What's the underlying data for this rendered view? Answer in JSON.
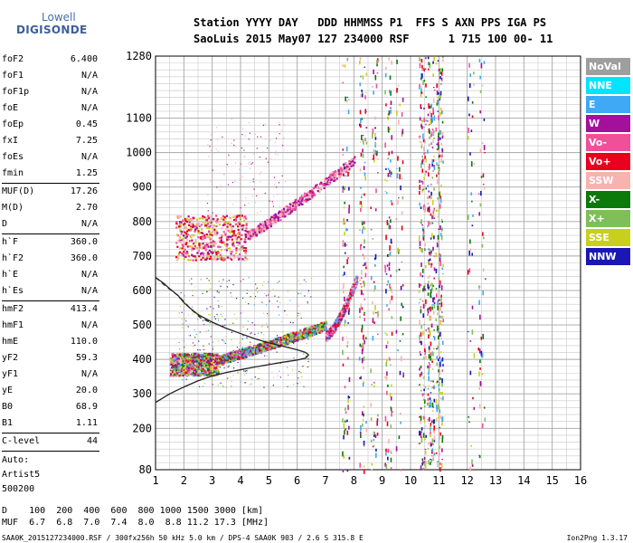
{
  "logo": {
    "line1": "Lowell",
    "line2": "DIGISONDE"
  },
  "header": {
    "row1": "Station YYYY DAY   DDD HHMMSS P1  FFS S AXN PPS IGA PS",
    "row2": "SaoLuis 2015 May07 127 234000 RSF      1 715 100 00- 11"
  },
  "params_group1": [
    {
      "k": "foF2",
      "v": "6.400"
    },
    {
      "k": "foF1",
      "v": "N/A"
    },
    {
      "k": "foF1p",
      "v": "N/A"
    },
    {
      "k": "foE",
      "v": "N/A"
    },
    {
      "k": "foEp",
      "v": "0.45"
    },
    {
      "k": "fxI",
      "v": "7.25"
    },
    {
      "k": "foEs",
      "v": "N/A"
    },
    {
      "k": "fmin",
      "v": "1.25"
    }
  ],
  "params_group2": [
    {
      "k": "MUF(D)",
      "v": "17.26"
    },
    {
      "k": "M(D)",
      "v": "2.70"
    },
    {
      "k": "D",
      "v": "N/A"
    }
  ],
  "params_group3": [
    {
      "k": "h`F",
      "v": "360.0"
    },
    {
      "k": "h`F2",
      "v": "360.0"
    },
    {
      "k": "h`E",
      "v": "N/A"
    },
    {
      "k": "h`Es",
      "v": "N/A"
    }
  ],
  "params_group4": [
    {
      "k": "hmF2",
      "v": "413.4"
    },
    {
      "k": "hmF1",
      "v": "N/A"
    },
    {
      "k": "hmE",
      "v": "110.0"
    },
    {
      "k": "yF2",
      "v": "59.3"
    },
    {
      "k": "yF1",
      "v": "N/A"
    },
    {
      "k": "yE",
      "v": "20.0"
    },
    {
      "k": "B0",
      "v": "68.9"
    },
    {
      "k": "B1",
      "v": "1.11"
    }
  ],
  "params_group5": [
    {
      "k": "C-level",
      "v": "44"
    }
  ],
  "auto": {
    "line1": "Auto:",
    "line2": "Artist5",
    "line3": "500200"
  },
  "legend": [
    {
      "label": "NoVal",
      "color": "#9e9e9e"
    },
    {
      "label": "NNE",
      "color": "#00e5ff"
    },
    {
      "label": "E",
      "color": "#3fa9f5"
    },
    {
      "label": "W",
      "color": "#a3109b"
    },
    {
      "label": "Vo-",
      "color": "#f0509a"
    },
    {
      "label": "Vo+",
      "color": "#e8001c"
    },
    {
      "label": "SSW",
      "color": "#f7b3ae"
    },
    {
      "label": "X-",
      "color": "#0b7a0b"
    },
    {
      "label": "X+",
      "color": "#7ebf5a"
    },
    {
      "label": "SSE",
      "color": "#c9cf1d"
    },
    {
      "label": "NNW",
      "color": "#1a17b4"
    }
  ],
  "footer": {
    "d_row": "D    100  200  400  600  800 1000 1500 3000 [km]",
    "muf_row": "MUF  6.7  6.8  7.0  7.4  8.0  8.8 11.2 17.3 [MHz]",
    "bottom": "SAA0K_2015127234000.RSF / 300fx256h 50 kHz 5.0 km / DPS-4 SAA0K 903 / 2.6 S 315.8 E",
    "version": "Ion2Png 1.3.17"
  },
  "chart_data": {
    "type": "scatter",
    "xlim": [
      1,
      16
    ],
    "ylim": [
      80,
      1280
    ],
    "x_ticks": [
      1,
      2,
      3,
      4,
      5,
      6,
      7,
      8,
      9,
      10,
      11,
      12,
      13,
      14,
      15,
      16
    ],
    "y_ticks": [
      80,
      200,
      300,
      400,
      500,
      600,
      700,
      800,
      900,
      1000,
      1100,
      1280
    ],
    "grid": true,
    "profile_curve": {
      "x": [
        1.0,
        1.5,
        2.0,
        2.5,
        3.0,
        3.5,
        4.0,
        4.5,
        5.0,
        5.5,
        6.0,
        6.3,
        6.4,
        6.3,
        6.0,
        5.5,
        5.0,
        4.5,
        4.0,
        3.5,
        3.0,
        2.5,
        2.2,
        2.0,
        1.8,
        1.5,
        1.3,
        1.0
      ],
      "y": [
        275,
        300,
        320,
        338,
        352,
        362,
        370,
        378,
        385,
        392,
        398,
        404,
        413,
        420,
        428,
        438,
        448,
        460,
        475,
        490,
        508,
        530,
        550,
        565,
        585,
        605,
        620,
        638
      ]
    },
    "dashed_segments": [
      [
        1.0,
        638
      ],
      [
        1.4,
        610
      ],
      [
        1.8,
        585
      ],
      [
        2.2,
        550
      ],
      [
        2.6,
        520
      ],
      [
        3.0,
        505
      ]
    ],
    "trace_clusters": [
      {
        "name": "F o-trace low",
        "x": [
          1.5,
          3.2
        ],
        "y": [
          355,
          420
        ],
        "density": 900,
        "palette": [
          "#e8001c",
          "#f0509a",
          "#a3109b",
          "#f7b3ae",
          "#0b7a0b",
          "#3fa9f5",
          "#c9cf1d",
          "#7ebf5a"
        ]
      },
      {
        "name": "F o-trace rise",
        "x": [
          3.2,
          7.0
        ],
        "y": [
          400,
          500
        ],
        "density": 900,
        "palette": [
          "#0b7a0b",
          "#7ebf5a",
          "#e8001c",
          "#a3109b",
          "#f0509a",
          "#c9cf1d",
          "#3fa9f5"
        ]
      },
      {
        "name": "F cusp",
        "x": [
          7.0,
          8.1
        ],
        "y": [
          470,
          640
        ],
        "density": 500,
        "palette": [
          "#e8001c",
          "#f0509a",
          "#a3109b",
          "#f7b3ae",
          "#3fa9f5"
        ]
      },
      {
        "name": "F2 mode",
        "x": [
          1.7,
          4.2
        ],
        "y": [
          690,
          820
        ],
        "density": 500,
        "palette": [
          "#a3109b",
          "#f7b3ae",
          "#f0509a",
          "#e8001c",
          "#c9cf1d"
        ]
      },
      {
        "name": "F2 mode rise",
        "x": [
          4.2,
          8.0
        ],
        "y": [
          760,
          980
        ],
        "density": 500,
        "palette": [
          "#f7b3ae",
          "#f0509a",
          "#a3109b"
        ]
      },
      {
        "name": "spread low",
        "x": [
          1.8,
          6.5
        ],
        "y": [
          320,
          640
        ],
        "density": 350,
        "palette": [
          "#a3109b",
          "#f7b3ae",
          "#3fa9f5",
          "#0b7a0b",
          "#c9cf1d",
          "#1a17b4"
        ]
      },
      {
        "name": "spread high",
        "x": [
          2.8,
          5.6
        ],
        "y": [
          820,
          1100
        ],
        "density": 120,
        "palette": [
          "#f7b3ae",
          "#a3109b"
        ]
      }
    ],
    "interference_columns": [
      {
        "x": 7.7,
        "density": 90
      },
      {
        "x": 8.3,
        "density": 120
      },
      {
        "x": 8.7,
        "density": 70
      },
      {
        "x": 9.2,
        "density": 110
      },
      {
        "x": 9.6,
        "density": 50
      },
      {
        "x": 10.4,
        "density": 180
      },
      {
        "x": 10.7,
        "density": 220
      },
      {
        "x": 11.0,
        "density": 200
      },
      {
        "x": 12.1,
        "density": 40
      },
      {
        "x": 12.5,
        "density": 50
      }
    ]
  }
}
